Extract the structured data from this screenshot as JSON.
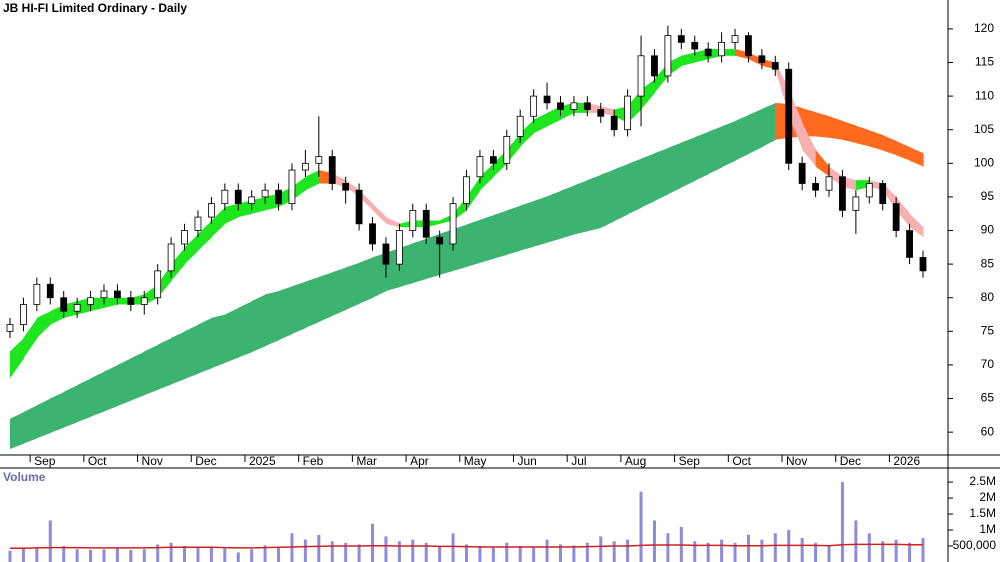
{
  "chart_data": [
    {
      "type": "candlestick",
      "title": "JB HI-FI Limited Ordinary - Daily",
      "categories": [
        null,
        null,
        "Sep",
        null,
        null,
        null,
        "Oct",
        null,
        null,
        null,
        "Nov",
        null,
        null,
        null,
        "Dec",
        null,
        null,
        null,
        "2025",
        null,
        null,
        null,
        "Feb",
        null,
        null,
        null,
        "Mar",
        null,
        null,
        null,
        "Apr",
        null,
        null,
        null,
        "May",
        null,
        null,
        null,
        "Jun",
        null,
        null,
        null,
        "Jul",
        null,
        null,
        null,
        "Aug",
        null,
        null,
        null,
        "Sep",
        null,
        null,
        null,
        "Oct",
        null,
        null,
        null,
        "Nov",
        null,
        null,
        null,
        "Dec",
        null,
        null,
        null,
        "2026",
        null,
        null
      ],
      "open": [
        75,
        76,
        79,
        82,
        80,
        78,
        79,
        80,
        81,
        80,
        79,
        80,
        84,
        88,
        90,
        92,
        94,
        96,
        94,
        95,
        96,
        94,
        99,
        100,
        101,
        97,
        96,
        91,
        88,
        85,
        90,
        93,
        89,
        88,
        94,
        98,
        101,
        100,
        104,
        107,
        110,
        109,
        108,
        109,
        108,
        107,
        105,
        110,
        116,
        113,
        119,
        118,
        117,
        116,
        118,
        119,
        116,
        115,
        114,
        100,
        97,
        96,
        98,
        93,
        95,
        97,
        94,
        90,
        86
      ],
      "high": [
        77,
        80,
        83,
        83,
        81,
        80,
        81,
        82,
        82,
        81,
        81,
        85,
        89,
        91,
        93,
        95,
        97,
        97,
        96,
        97,
        97,
        100,
        102,
        107,
        102,
        98,
        97,
        92,
        89,
        91,
        94,
        94,
        90,
        95,
        99,
        102,
        102,
        105,
        108,
        111,
        112,
        110,
        110,
        110,
        109,
        108,
        111,
        119,
        117,
        120.5,
        120,
        119,
        118,
        119.5,
        120,
        119.5,
        117,
        116,
        115,
        101,
        98,
        100,
        99,
        96,
        98,
        97.5,
        95,
        91,
        87
      ],
      "low": [
        74,
        75,
        78,
        79,
        77,
        77,
        78,
        79,
        79,
        78,
        77.5,
        79,
        83,
        87,
        89,
        91,
        93,
        93,
        93,
        94,
        93,
        93,
        98,
        98,
        96,
        94,
        90,
        87,
        83,
        84,
        89,
        88,
        83,
        87,
        93,
        97,
        99,
        99,
        103,
        106,
        108,
        107,
        107,
        107,
        106,
        104,
        104,
        105.5,
        112,
        112,
        117,
        116,
        115,
        115,
        117,
        115,
        114,
        113,
        99,
        96,
        95,
        95,
        92,
        89.5,
        94,
        93,
        89,
        85,
        83
      ],
      "close": [
        76,
        79,
        82,
        80,
        78,
        79,
        80,
        81,
        80,
        79,
        80,
        84,
        88,
        90,
        92,
        94,
        96,
        94,
        95,
        96,
        94,
        99,
        100,
        101,
        97,
        96,
        91,
        88,
        85,
        90,
        93,
        89,
        88,
        94,
        98,
        101,
        100,
        104,
        107,
        110,
        109,
        108,
        109,
        108,
        107,
        105,
        110,
        116,
        113,
        119,
        118,
        117,
        116,
        118,
        119,
        116,
        115,
        114,
        100,
        97,
        96,
        98,
        93,
        95,
        97,
        94,
        90,
        86,
        84
      ],
      "short_band": {
        "upper": [
          72,
          74,
          77,
          78,
          79,
          79.5,
          80,
          80,
          80,
          80,
          80.5,
          82,
          85,
          87.5,
          89.5,
          91.5,
          93.5,
          94,
          94.5,
          95,
          95.5,
          96.5,
          98,
          99,
          98.5,
          97.5,
          96,
          94,
          92,
          91,
          91.5,
          91.5,
          91.5,
          92.5,
          95,
          98,
          100,
          102,
          104.5,
          106.5,
          107.5,
          108.5,
          109,
          109,
          108.5,
          108,
          108.5,
          111,
          112.5,
          115,
          116,
          116.5,
          117,
          117,
          117,
          116.5,
          115.5,
          115,
          111,
          106,
          102,
          99.5,
          98,
          97.5,
          97.5,
          97,
          95,
          92.5,
          90.5
        ],
        "lower": [
          68,
          71,
          74,
          76,
          77,
          77.5,
          78,
          78.5,
          79,
          79,
          79,
          80,
          82.5,
          85,
          87,
          89,
          91,
          92,
          92.5,
          93,
          93.5,
          94.5,
          96,
          97,
          97,
          96.5,
          95,
          93,
          91,
          90.5,
          90.5,
          90.5,
          91,
          91.5,
          93,
          96,
          98,
          100,
          102.5,
          104.5,
          105.5,
          106.5,
          107.5,
          107.5,
          107.5,
          107,
          106,
          108,
          110.5,
          113,
          114.5,
          115,
          115.5,
          116,
          116,
          115.5,
          114.5,
          114,
          107,
          102,
          99.5,
          98,
          96.5,
          96,
          96.5,
          96,
          93,
          90.5,
          89
        ]
      },
      "long_band": {
        "upper": [
          62,
          63,
          64,
          65,
          66,
          67,
          68,
          69,
          70,
          71,
          72,
          73,
          74,
          75,
          76,
          77,
          77.5,
          78.5,
          79.5,
          80.5,
          81,
          81.7,
          82.4,
          83.1,
          83.8,
          84.5,
          85.2,
          86,
          86.7,
          87.4,
          88.1,
          88.8,
          89.5,
          90.2,
          90.9,
          91.6,
          92.3,
          93,
          93.7,
          94.4,
          95.1,
          95.9,
          96.7,
          97.5,
          98.3,
          99.1,
          99.9,
          100.7,
          101.5,
          102.3,
          103.1,
          103.9,
          104.7,
          105.5,
          106.3,
          107.2,
          108.1,
          109,
          108.8,
          108.2,
          107.6,
          107,
          106.3,
          105.6,
          104.9,
          104.2,
          103.3,
          102.4,
          101.5
        ],
        "lower": [
          57.5,
          58.3,
          59.1,
          59.9,
          60.7,
          61.5,
          62.3,
          63.1,
          63.9,
          64.7,
          65.5,
          66.3,
          67.1,
          67.9,
          68.7,
          69.5,
          70.3,
          71.1,
          71.9,
          72.8,
          73.7,
          74.6,
          75.5,
          76.4,
          77.3,
          78.2,
          79.1,
          80,
          81,
          81.6,
          82.2,
          82.8,
          83.4,
          84,
          84.6,
          85.2,
          85.8,
          86.4,
          87,
          87.6,
          88.2,
          88.8,
          89.4,
          89.9,
          90.4,
          91.4,
          92.4,
          93.4,
          94.4,
          95.4,
          96.4,
          97.4,
          98.4,
          99.4,
          100.4,
          101.4,
          102.4,
          103.5,
          103.8,
          104,
          104,
          103.8,
          103.5,
          103,
          102.5,
          101.9,
          101.2,
          100.4,
          99.5
        ]
      },
      "colors": {
        "short_up": "#1ee61e",
        "short_down": "#ff6a1e",
        "short_below": "#f7b0b0",
        "long_up": "#3cb371",
        "long_down": "#ff6a1e",
        "candle_up": "#ffffff",
        "candle_down": "#000000",
        "candle_line": "#000000"
      },
      "ylim": [
        56.6,
        124.3
      ],
      "yticks": [
        60,
        65,
        70,
        75,
        80,
        85,
        90,
        95,
        100,
        105,
        110,
        115,
        120
      ]
    },
    {
      "type": "bar",
      "title": "Volume",
      "values": [
        350000,
        450000,
        420000,
        1300000,
        500000,
        400000,
        380000,
        400000,
        420000,
        380000,
        400000,
        550000,
        600000,
        500000,
        450000,
        480000,
        420000,
        300000,
        400000,
        520000,
        450000,
        900000,
        700000,
        850000,
        650000,
        600000,
        550000,
        1200000,
        800000,
        650000,
        700000,
        600000,
        500000,
        900000,
        550000,
        500000,
        450000,
        600000,
        500000,
        480000,
        700000,
        550000,
        520000,
        600000,
        800000,
        650000,
        700000,
        2200000,
        1300000,
        900000,
        1100000,
        650000,
        600000,
        700000,
        600000,
        850000,
        700000,
        900000,
        1000000,
        750000,
        600000,
        500000,
        2500000,
        1300000,
        900000,
        650000,
        700000,
        600000,
        750000
      ],
      "average": [
        430000,
        430000,
        440000,
        450000,
        450000,
        450000,
        440000,
        440000,
        440000,
        440000,
        440000,
        450000,
        460000,
        460000,
        460000,
        460000,
        450000,
        440000,
        440000,
        450000,
        460000,
        470000,
        480000,
        490000,
        500000,
        500000,
        500000,
        510000,
        510000,
        500000,
        500000,
        500000,
        490000,
        490000,
        480000,
        470000,
        470000,
        470000,
        470000,
        470000,
        470000,
        470000,
        470000,
        480000,
        490000,
        500000,
        500000,
        520000,
        530000,
        530000,
        530000,
        520000,
        520000,
        520000,
        510000,
        510000,
        510000,
        520000,
        520000,
        520000,
        520000,
        510000,
        540000,
        550000,
        550000,
        550000,
        550000,
        540000,
        540000
      ],
      "color": "#8b8be0",
      "average_color": "#d02020",
      "ylim": [
        0,
        2940000
      ],
      "yticks": [
        {
          "value": 500000,
          "label": "500,000"
        },
        {
          "value": 1000000,
          "label": "1M"
        },
        {
          "value": 1500000,
          "label": "1.5M"
        },
        {
          "value": 2000000,
          "label": "2M"
        },
        {
          "value": 2500000,
          "label": "2.5M"
        }
      ]
    }
  ]
}
